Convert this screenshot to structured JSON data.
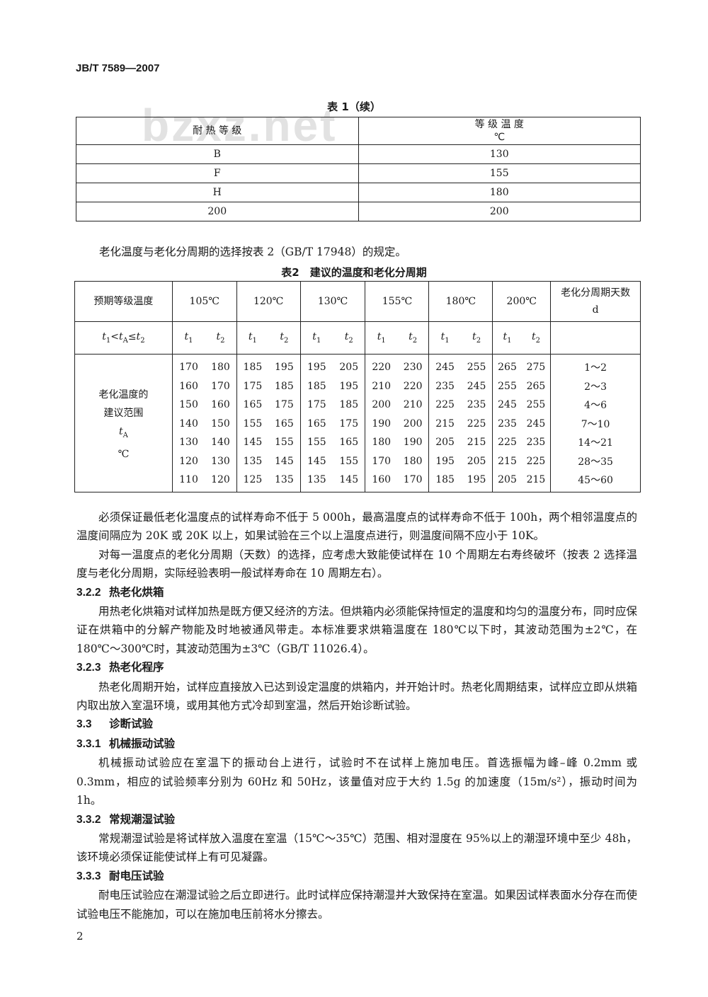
{
  "header": {
    "code": "JB/T 7589—2007"
  },
  "watermark": "bzxz.net",
  "table1": {
    "caption": "表 1（续）",
    "headers": [
      "耐 热 等 级",
      [
        "等 级 温 度",
        "℃"
      ]
    ],
    "rows": [
      [
        "B",
        130
      ],
      [
        "F",
        155
      ],
      [
        "H",
        180
      ],
      [
        200,
        200
      ]
    ]
  },
  "intro": "老化温度与老化分周期的选择按表 2（GB/T 17948）的规定。",
  "table2": {
    "caption": "表2　建议的温度和老化分周期",
    "corner": "预期等级温度",
    "temperatures": [
      "105℃",
      "120℃",
      "130℃",
      "155℃",
      "180℃",
      "200℃"
    ],
    "days_header": [
      "老化分周期天数",
      "d"
    ],
    "condition": [
      "t",
      "1",
      "<t",
      "A",
      "≤t",
      "2"
    ],
    "sub_symbol": "t",
    "subs": [
      "1",
      "2"
    ],
    "row_label": [
      "老化温度的",
      "建议范围"
    ],
    "row_symbol": [
      "t",
      "A"
    ],
    "row_unit": "℃",
    "rows": [
      [
        170,
        180,
        185,
        195,
        195,
        205,
        220,
        230,
        245,
        255,
        265,
        275
      ],
      [
        160,
        170,
        175,
        185,
        185,
        195,
        210,
        220,
        235,
        245,
        255,
        265
      ],
      [
        150,
        160,
        165,
        175,
        175,
        185,
        200,
        210,
        225,
        235,
        245,
        255
      ],
      [
        140,
        150,
        155,
        165,
        165,
        175,
        190,
        200,
        215,
        225,
        235,
        245
      ],
      [
        130,
        140,
        145,
        155,
        155,
        165,
        180,
        190,
        205,
        215,
        225,
        235
      ],
      [
        120,
        130,
        135,
        145,
        145,
        155,
        170,
        180,
        195,
        205,
        215,
        225
      ],
      [
        110,
        120,
        125,
        135,
        135,
        145,
        160,
        170,
        185,
        195,
        205,
        215
      ]
    ],
    "days": [
      "1～2",
      "2～3",
      "4～6",
      "7～10",
      "14～21",
      "28～35",
      "45～60"
    ]
  },
  "body": [
    {
      "text": "必须保证最低老化温度点的试样寿命不低于 5 000h，最高温度点的试样寿命不低于 100h，两个相邻温度点的温度间隔应为 20K 或 20K 以上，如果试验在三个以上温度点进行，则温度间隔不应小于 10K。"
    },
    {
      "text": "对每一温度点的老化分周期（天数）的选择，应考虑大致能使试样在 10 个周期左右寿终破坏（按表 2 选择温度与老化分周期，实际经验表明一般试样寿命在 10 周期左右）。"
    },
    {
      "number": "3.2.2",
      "title": "热老化烘箱"
    },
    {
      "text": "用热老化烘箱对试样加热是既方便又经济的方法。但烘箱内必须能保持恒定的温度和均匀的温度分布，同时应保证在烘箱中的分解产物能及时地被通风带走。本标准要求烘箱温度在 180℃以下时，其波动范围为±2℃，在 180℃～300℃时，其波动范围为±3℃（GB/T 11026.4）。"
    },
    {
      "number": "3.2.3",
      "title": "热老化程序"
    },
    {
      "text": "热老化周期开始，试样应直接放入已达到设定温度的烘箱内，并开始计时。热老化周期结束，试样应立即从烘箱内取出放入室温环境，或用其他方式冷却到室温，然后开始诊断试验。"
    },
    {
      "number": "3.3",
      "title": "诊断试验"
    },
    {
      "number": "3.3.1",
      "title": "机械振动试验"
    },
    {
      "text": "机械振动试验应在室温下的振动台上进行，试验时不在试样上施加电压。首选振幅为峰–峰 0.2mm 或 0.3mm，相应的试验频率分别为 60Hz 和 50Hz，该量值对应于大约 1.5g 的加速度（15m/s²），振动时间为 1h。"
    },
    {
      "number": "3.3.2",
      "title": "常规潮湿试验"
    },
    {
      "text": "常规潮湿试验是将试样放入温度在室温（15℃～35℃）范围、相对湿度在 95%以上的潮湿环境中至少 48h，该环境必须保证能使试样上有可见凝露。"
    },
    {
      "number": "3.3.3",
      "title": "耐电压试验"
    },
    {
      "text": "耐电压试验应在潮湿试验之后立即进行。此时试样应保持潮湿并大致保持在室温。如果因试样表面水分存在而使试验电压不能施加，可以在施加电压前将水分擦去。"
    }
  ],
  "footer": {
    "page": "2"
  }
}
